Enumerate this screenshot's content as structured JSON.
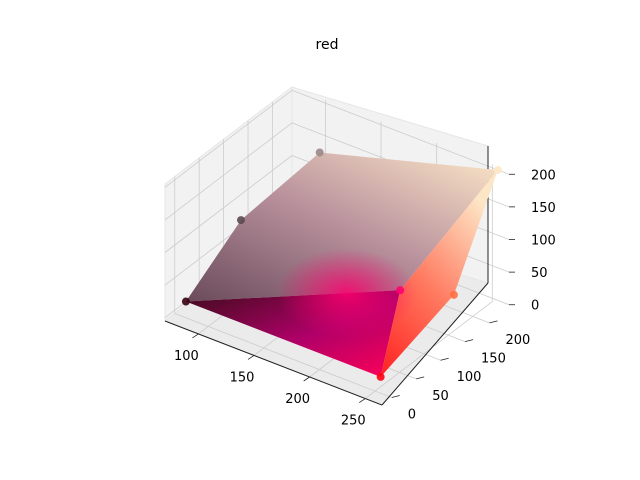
{
  "chart_data": {
    "type": "scatter",
    "projection": "3d",
    "title": "red",
    "xlabel": "",
    "ylabel": "",
    "zlabel": "",
    "grid": true,
    "xlim": [
      70,
      265
    ],
    "ylim": [
      -20,
      240
    ],
    "zlim": [
      -5,
      205
    ],
    "x_ticks": [
      100,
      150,
      200,
      250
    ],
    "y_ticks": [
      0,
      50,
      100,
      150,
      200
    ],
    "z_ticks": [
      0,
      50,
      100,
      150,
      200
    ],
    "pane_color": "#f2f2f2",
    "grid_color": "#cccccc",
    "colormap_note": "points colored by their (x,y,z) as (red,green,blue)",
    "hull_points": [
      {
        "label": "dark-corner",
        "x": 80,
        "y": 0,
        "z": 20,
        "color": "#3a0010"
      },
      {
        "label": "red-corner",
        "x": 255,
        "y": 0,
        "z": 20,
        "color": "#ff0012"
      },
      {
        "label": "pink-mid",
        "x": 255,
        "y": 40,
        "z": 130,
        "color": "#ff0070"
      },
      {
        "label": "orange-edge",
        "x": 255,
        "y": 150,
        "z": 60,
        "color": "#ff7040"
      },
      {
        "label": "cream-top",
        "x": 255,
        "y": 240,
        "z": 200,
        "color": "#fde8c8"
      },
      {
        "label": "grey-top",
        "x": 130,
        "y": 160,
        "z": 190,
        "color": "#9a8a8a"
      },
      {
        "label": "grey-left",
        "x": 90,
        "y": 90,
        "z": 100,
        "color": "#5a4a50"
      }
    ]
  }
}
